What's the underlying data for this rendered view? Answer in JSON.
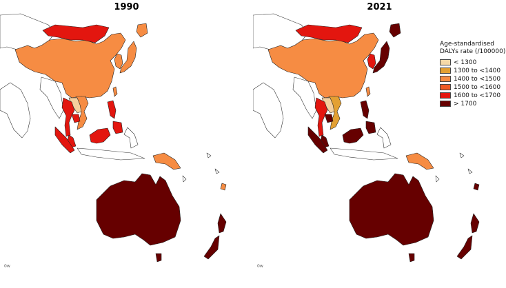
{
  "panels": [
    {
      "title": "1990",
      "colors": {
        "mongolia": "#e3160f",
        "china": "#f68c43",
        "japan": "#f68c43",
        "korea": "#f68c43",
        "taiwan": "#f68c43",
        "vietnam": "#f68c43",
        "laos": "#f5cf9e",
        "thailand": "#e3160f",
        "cambodia": "#e3160f",
        "philippines": "#e3160f",
        "malaysia": "#e3160f",
        "sumatra": "#e3160f",
        "borneo": "#e3160f",
        "png": "#f68c43",
        "australia": "#660000",
        "nz": "#660000",
        "pacific": "#f68c43"
      }
    },
    {
      "title": "2021",
      "colors": {
        "mongolia": "#e3160f",
        "china": "#f68c43",
        "japan": "#660000",
        "korea": "#e3160f",
        "taiwan": "#f68c43",
        "vietnam": "#e3a033",
        "laos": "#f5cf9e",
        "thailand": "#e3160f",
        "cambodia": "#660000",
        "philippines": "#660000",
        "malaysia": "#660000",
        "sumatra": "#660000",
        "borneo": "#660000",
        "png": "#f68c43",
        "australia": "#660000",
        "nz": "#660000",
        "pacific": "#660000"
      }
    }
  ],
  "legend": {
    "title_line1": "Age-standardised",
    "title_line2": "DALYs rate (/100000)",
    "items": [
      {
        "label": "< 1300",
        "color": "#f5d9a8"
      },
      {
        "label": "1300 to <1400",
        "color": "#e3a033"
      },
      {
        "label": "1400 to <1500",
        "color": "#f68c43"
      },
      {
        "label": "1500 to <1600",
        "color": "#f05a23"
      },
      {
        "label": "1600 to <1700",
        "color": "#e3160f"
      },
      {
        "label": "> 1700",
        "color": "#660000"
      }
    ]
  },
  "scale_mark": "0⁠w"
}
